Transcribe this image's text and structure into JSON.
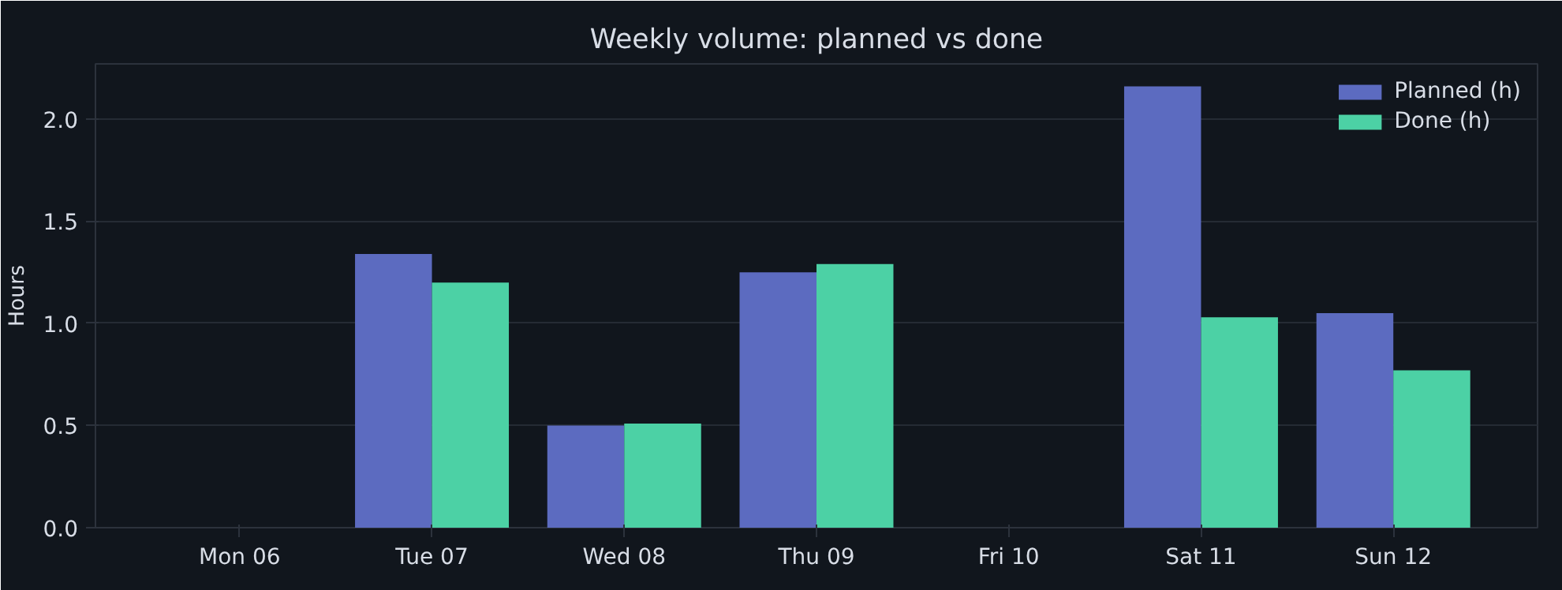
{
  "chart_data": {
    "type": "bar",
    "title": "Weekly volume: planned vs done",
    "ylabel": "Hours",
    "categories": [
      "Mon 06",
      "Tue 07",
      "Wed 08",
      "Thu 09",
      "Fri 10",
      "Sat 11",
      "Sun 12"
    ],
    "series": [
      {
        "name": "Planned (h)",
        "color": "#5c6bc0",
        "values": [
          0,
          1.34,
          0.5,
          1.25,
          0,
          2.16,
          1.05
        ]
      },
      {
        "name": "Done (h)",
        "color": "#4cd1a5",
        "values": [
          0,
          1.2,
          0.51,
          1.29,
          0,
          1.03,
          0.77
        ]
      }
    ],
    "ylim": [
      0,
      2.27
    ],
    "yticks": [
      {
        "value": 0,
        "label": "0.0"
      },
      {
        "value": 0.5,
        "label": "0.5"
      },
      {
        "value": 1,
        "label": "1.0"
      },
      {
        "value": 1.5,
        "label": "1.5"
      },
      {
        "value": 2,
        "label": "2.0"
      }
    ],
    "grid": "y",
    "legend": "top right"
  }
}
